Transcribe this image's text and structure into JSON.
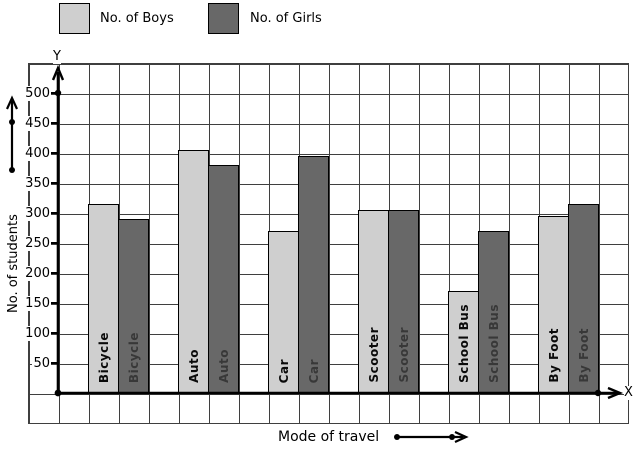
{
  "legend": {
    "boys_label": "No. of Boys",
    "girls_label": "No. of Girls"
  },
  "axes": {
    "y_letter": "Y",
    "x_letter": "X",
    "y_title": "No. of students",
    "x_title": "Mode of travel"
  },
  "colors": {
    "boys_bar": "#cfcfcf",
    "girls_bar": "#686868",
    "grid_line": "#3f3f3f",
    "axis_line": "#000000",
    "girls_label_text": "#383838"
  },
  "chart_data": {
    "type": "bar",
    "title": "",
    "categories": [
      "Bicycle",
      "Auto",
      "Car",
      "Scooter",
      "School Bus",
      "By Foot"
    ],
    "series": [
      {
        "name": "No. of Boys",
        "values": [
          315,
          405,
          270,
          305,
          170,
          295
        ]
      },
      {
        "name": "No. of Girls",
        "values": [
          290,
          380,
          395,
          305,
          270,
          315
        ]
      }
    ],
    "xlabel": "Mode of travel",
    "ylabel": "No. of students",
    "ylim": [
      0,
      550
    ],
    "yticks": [
      50,
      100,
      150,
      200,
      250,
      300,
      350,
      400,
      450,
      500
    ],
    "y_units_per_cell": 50,
    "grid": true,
    "legend_position": "top"
  }
}
